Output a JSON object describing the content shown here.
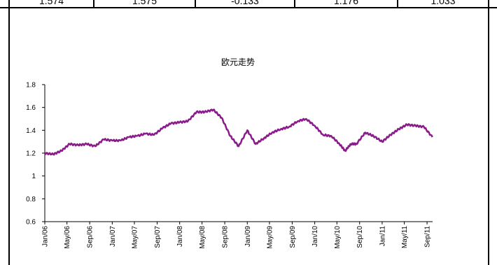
{
  "table_row": {
    "cells": [
      "1.574",
      "1.575",
      "-0.133",
      "1.176",
      "1.033"
    ]
  },
  "chart_data": {
    "type": "line",
    "title": "欧元走势",
    "xlabel": "",
    "ylabel": "",
    "ylim": [
      0.6,
      1.8
    ],
    "yticks": [
      "0.6",
      "0.8",
      "1",
      "1.2",
      "1.4",
      "1.6",
      "1.8"
    ],
    "xticks": [
      "Jan/06",
      "May/06",
      "Sep/06",
      "Jan/07",
      "May/07",
      "Sep/07",
      "Jan/08",
      "May/08",
      "Sep/08",
      "Jan/09",
      "May/09",
      "Sep/09",
      "Jan/10",
      "May/10",
      "Sep/10",
      "Jan/11",
      "May/11",
      "Sep/11"
    ],
    "grid": false,
    "line_color": "#8B1A8B",
    "series": [
      {
        "x": [
          "2006-01-01",
          "2006-02-15",
          "2006-04-01",
          "2006-05-15",
          "2006-07-01",
          "2006-08-15",
          "2006-10-01",
          "2006-11-15",
          "2007-01-01",
          "2007-02-15",
          "2007-04-01",
          "2007-05-15",
          "2007-07-01",
          "2007-08-15",
          "2007-10-01",
          "2007-11-15",
          "2008-01-01",
          "2008-02-15",
          "2008-04-01",
          "2008-05-15",
          "2008-07-01",
          "2008-08-15",
          "2008-10-01",
          "2008-11-15",
          "2009-01-01",
          "2009-02-15",
          "2009-04-01",
          "2009-05-15",
          "2009-07-01",
          "2009-08-15",
          "2009-10-01",
          "2009-11-15",
          "2010-01-01",
          "2010-02-15",
          "2010-04-01",
          "2010-05-15",
          "2010-06-15",
          "2010-07-15",
          "2010-08-15",
          "2010-10-01",
          "2010-11-15",
          "2011-01-01",
          "2011-02-15",
          "2011-04-01",
          "2011-05-15",
          "2011-07-01",
          "2011-08-15",
          "2011-09-30"
        ],
        "values": [
          1.2,
          1.19,
          1.22,
          1.28,
          1.27,
          1.28,
          1.26,
          1.32,
          1.31,
          1.31,
          1.34,
          1.35,
          1.37,
          1.36,
          1.42,
          1.46,
          1.47,
          1.48,
          1.56,
          1.56,
          1.58,
          1.51,
          1.35,
          1.26,
          1.4,
          1.28,
          1.33,
          1.38,
          1.41,
          1.43,
          1.48,
          1.5,
          1.44,
          1.36,
          1.35,
          1.28,
          1.22,
          1.28,
          1.28,
          1.38,
          1.35,
          1.3,
          1.36,
          1.41,
          1.45,
          1.44,
          1.43,
          1.34
        ]
      }
    ]
  }
}
